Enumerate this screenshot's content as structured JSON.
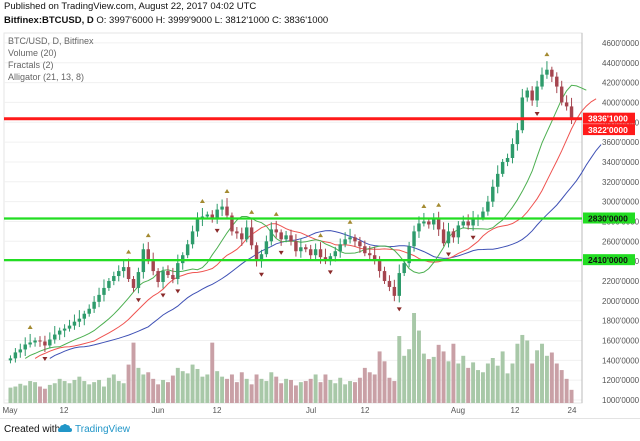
{
  "header": {
    "published": "Published on TradingView.com, August 22, 2017 04:02 UTC",
    "symbol_line": "Bitfinex:BTCUSD, D",
    "ohlc": {
      "o": "O: 3997'6000",
      "h": "H: 3999'9000",
      "l": "L: 3812'1000",
      "c": "C: 3836'1000"
    }
  },
  "legend": {
    "symbol": "BTC/USD, D, Bitfinex",
    "volume": "Volume (20)",
    "fractals": "Fractals (2)",
    "alligator": "Alligator (21, 13, 8)"
  },
  "footer": {
    "created_with": "Created with",
    "brand": "TradingView"
  },
  "colors": {
    "up": "#2e9b6b",
    "down": "#a5454f",
    "resistance": "#ff1a1a",
    "support": "#22dd22",
    "lips": "#4caf50",
    "teeth": "#ef5350",
    "jaw": "#3f51b5",
    "vol_up": "#a8c8a8",
    "vol_down": "#c9a0a6"
  },
  "chart_data": {
    "type": "candlestick",
    "y_ticks": [
      "4600'0000",
      "4400'0000",
      "4200'0000",
      "4000'0000",
      "3800'0000",
      "3600'0000",
      "3400'0000",
      "3200'0000",
      "3000'0000",
      "2800'0000",
      "2600'0000",
      "2400'0000",
      "2200'0000",
      "2000'0000",
      "1800'0000",
      "1600'0000",
      "1400'0000",
      "1200'0000",
      "1000'0000"
    ],
    "ylim": [
      970,
      4700
    ],
    "x_labels": [
      "May",
      "12",
      "Jun",
      "12",
      "Jul",
      "12",
      "Aug",
      "12",
      "24"
    ],
    "horizontal_lines": [
      {
        "label": "3836'1000",
        "value": 3836.1,
        "kind": "resistance"
      },
      {
        "label": "3822'0000",
        "value": 3822,
        "kind": "resistance"
      },
      {
        "label": "2830'0000",
        "value": 2830,
        "kind": "support"
      },
      {
        "label": "2410'0000",
        "value": 2410,
        "kind": "support"
      }
    ],
    "close": [
      1420,
      1480,
      1510,
      1560,
      1580,
      1600,
      1590,
      1550,
      1610,
      1660,
      1700,
      1720,
      1750,
      1790,
      1820,
      1870,
      1920,
      1990,
      2060,
      2130,
      2200,
      2250,
      2300,
      2340,
      2220,
      2130,
      2290,
      2520,
      2400,
      2300,
      2190,
      2300,
      2260,
      2220,
      2380,
      2460,
      2570,
      2700,
      2820,
      2850,
      2870,
      2830,
      2920,
      2950,
      2860,
      2700,
      2680,
      2620,
      2740,
      2560,
      2400,
      2470,
      2600,
      2720,
      2690,
      2620,
      2660,
      2600,
      2500,
      2540,
      2520,
      2460,
      2520,
      2440,
      2400,
      2450,
      2500,
      2570,
      2620,
      2640,
      2600,
      2550,
      2480,
      2460,
      2420,
      2300,
      2200,
      2140,
      2050,
      2280,
      2380,
      2550,
      2700,
      2780,
      2800,
      2770,
      2840,
      2720,
      2580,
      2700,
      2640,
      2760,
      2800,
      2760,
      2820,
      2840,
      2900,
      3000,
      3150,
      3280,
      3400,
      3440,
      3580,
      3720,
      4050,
      4120,
      4020,
      4160,
      4280,
      4330,
      4260,
      4160,
      4000,
      3960,
      3836
    ],
    "volume_scale": [
      28,
      30,
      35,
      32,
      40,
      38,
      30,
      26,
      33,
      36,
      44,
      40,
      36,
      42,
      48,
      40,
      34,
      38,
      42,
      30,
      46,
      52,
      40,
      36,
      70,
      110,
      64,
      52,
      56,
      44,
      34,
      42,
      38,
      50,
      64,
      58,
      54,
      70,
      62,
      48,
      52,
      110,
      58,
      48,
      44,
      52,
      38,
      56,
      44,
      34,
      52,
      44,
      40,
      56,
      48,
      36,
      44,
      42,
      32,
      38,
      40,
      44,
      52,
      38,
      52,
      42,
      36,
      46,
      34,
      40,
      38,
      46,
      64,
      56,
      52,
      94,
      76,
      46,
      40,
      122,
      86,
      98,
      164,
      132,
      90,
      80,
      84,
      106,
      94,
      76,
      108,
      72,
      86,
      64,
      74,
      60,
      56,
      72,
      82,
      68,
      94,
      54,
      72,
      108,
      124,
      114,
      72,
      96,
      108,
      86,
      92,
      72,
      60,
      44,
      24
    ]
  }
}
